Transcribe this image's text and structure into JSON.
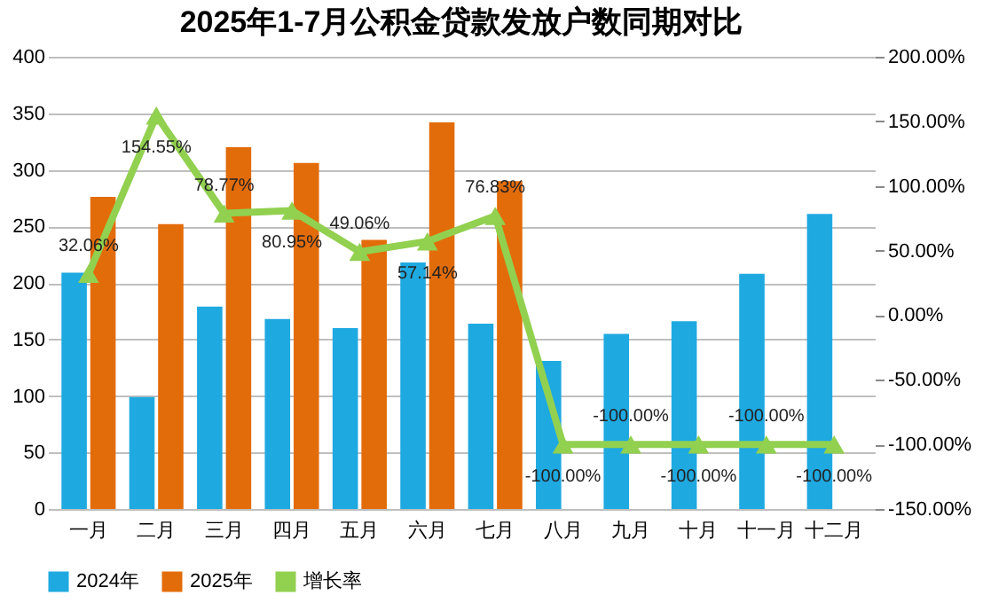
{
  "chart_data": {
    "type": "bar",
    "title": "2025年1-7月公积金贷款发放户数同期对比",
    "categories": [
      "一月",
      "二月",
      "三月",
      "四月",
      "五月",
      "六月",
      "七月",
      "八月",
      "九月",
      "十月",
      "十一月",
      "十二月"
    ],
    "series": [
      {
        "name": "2024年",
        "color": "#1fa9e1",
        "values": [
          209,
          99,
          179,
          168,
          160,
          218,
          164,
          131,
          155,
          166,
          208,
          261
        ]
      },
      {
        "name": "2025年",
        "color": "#e36c0a",
        "values": [
          276,
          252,
          320,
          306,
          238,
          342,
          290,
          null,
          null,
          null,
          null,
          null
        ]
      },
      {
        "name": "增长率",
        "type": "line",
        "axis": "y2",
        "color": "#92d050",
        "marker": "triangle",
        "values": [
          32.06,
          154.55,
          78.77,
          80.95,
          49.06,
          57.14,
          76.83,
          -100,
          -100,
          -100,
          -100,
          -100
        ],
        "value_labels": [
          "32.06%",
          "154.55%",
          "78.77%",
          "80.95%",
          "49.06%",
          "57.14%",
          "76.83%",
          "-100.00%",
          "-100.00%",
          "-100.00%",
          "-100.00%",
          "-100.00%"
        ]
      }
    ],
    "ylim": [
      0,
      400
    ],
    "yticks": [
      0,
      50,
      100,
      150,
      200,
      250,
      300,
      350,
      400
    ],
    "y2lim": [
      -150,
      200
    ],
    "y2ticks": [
      {
        "value": -150,
        "label": "-150.00%"
      },
      {
        "value": -100,
        "label": "-100.00%"
      },
      {
        "value": -50,
        "label": "-50.00%"
      },
      {
        "value": 0,
        "label": "0.00%"
      },
      {
        "value": 50,
        "label": "50.00%"
      },
      {
        "value": 100,
        "label": "100.00%"
      },
      {
        "value": 150,
        "label": "150.00%"
      },
      {
        "value": 200,
        "label": "200.00%"
      }
    ],
    "grid": "y",
    "legend": "bottom"
  }
}
